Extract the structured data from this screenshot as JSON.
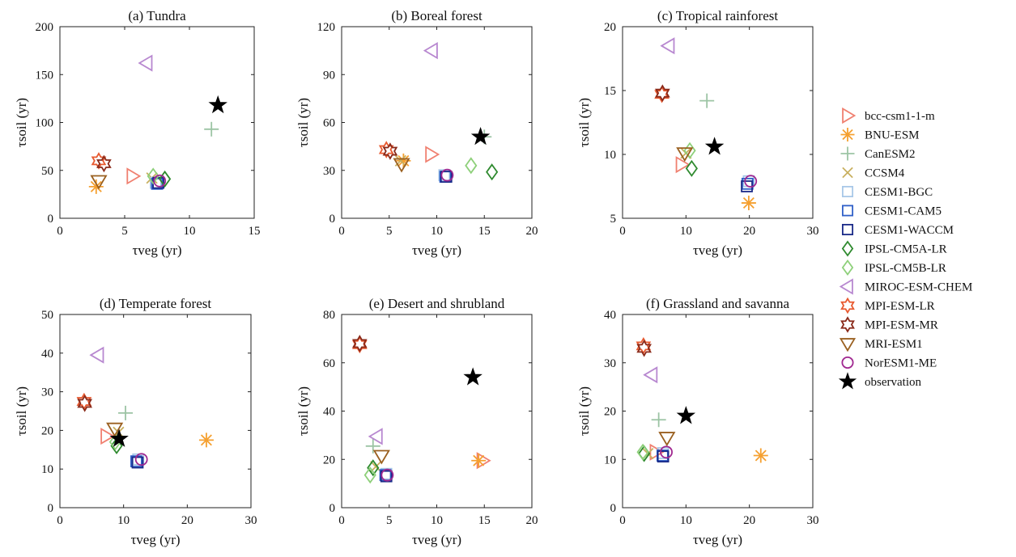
{
  "models": [
    {
      "name": "bcc-csm1-1-m",
      "marker": "triangle-right",
      "color": "#f08070"
    },
    {
      "name": "BNU-ESM",
      "marker": "asterisk",
      "color": "#f5a030"
    },
    {
      "name": "CanESM2",
      "marker": "plus",
      "color": "#9cc4a4"
    },
    {
      "name": "CCSM4",
      "marker": "x",
      "color": "#c8b060"
    },
    {
      "name": "CESM1-BGC",
      "marker": "square",
      "color": "#a8c8e8"
    },
    {
      "name": "CESM1-CAM5",
      "marker": "square",
      "color": "#3060c8"
    },
    {
      "name": "CESM1-WACCM",
      "marker": "square",
      "color": "#1a2a88"
    },
    {
      "name": "IPSL-CM5A-LR",
      "marker": "diamond",
      "color": "#2e8a2e"
    },
    {
      "name": "IPSL-CM5B-LR",
      "marker": "diamond",
      "color": "#8ed07a"
    },
    {
      "name": "MIROC-ESM-CHEM",
      "marker": "triangle-left",
      "color": "#b888d0"
    },
    {
      "name": "MPI-ESM-LR",
      "marker": "hexagram",
      "color": "#e85a30"
    },
    {
      "name": "MPI-ESM-MR",
      "marker": "hexagram",
      "color": "#8a2a1a"
    },
    {
      "name": "MRI-ESM1",
      "marker": "triangle-down",
      "color": "#9a6020"
    },
    {
      "name": "NorESM1-ME",
      "marker": "circle",
      "color": "#a02890"
    },
    {
      "name": "observation",
      "marker": "star",
      "color": "#000000"
    }
  ],
  "chart_data": [
    {
      "type": "scatter",
      "title": "(a) Tundra",
      "xlabel": "τveg (yr)",
      "ylabel": "τsoil (yr)",
      "xlim": [
        0,
        15
      ],
      "ylim": [
        0,
        200
      ],
      "xticks": [
        0,
        5,
        10,
        15
      ],
      "yticks": [
        0,
        50,
        100,
        150,
        200
      ],
      "series": [
        {
          "name": "bcc-csm1-1-m",
          "x": [
            5.6
          ],
          "y": [
            44
          ]
        },
        {
          "name": "BNU-ESM",
          "x": [
            2.8
          ],
          "y": [
            33
          ]
        },
        {
          "name": "CanESM2",
          "x": [
            11.7
          ],
          "y": [
            93
          ]
        },
        {
          "name": "CCSM4",
          "x": [
            7.1
          ],
          "y": [
            42
          ]
        },
        {
          "name": "CESM1-BGC",
          "x": [
            7.4
          ],
          "y": [
            37
          ]
        },
        {
          "name": "CESM1-CAM5",
          "x": [
            7.5
          ],
          "y": [
            36
          ]
        },
        {
          "name": "CESM1-WACCM",
          "x": [
            7.6
          ],
          "y": [
            37
          ]
        },
        {
          "name": "IPSL-CM5A-LR",
          "x": [
            8.1
          ],
          "y": [
            41
          ]
        },
        {
          "name": "IPSL-CM5B-LR",
          "x": [
            7.2
          ],
          "y": [
            44
          ]
        },
        {
          "name": "MIROC-ESM-CHEM",
          "x": [
            6.7
          ],
          "y": [
            162
          ]
        },
        {
          "name": "MPI-ESM-LR",
          "x": [
            3.0
          ],
          "y": [
            60
          ]
        },
        {
          "name": "MPI-ESM-MR",
          "x": [
            3.4
          ],
          "y": [
            57
          ]
        },
        {
          "name": "MRI-ESM1",
          "x": [
            3.0
          ],
          "y": [
            39
          ]
        },
        {
          "name": "NorESM1-ME",
          "x": [
            7.7
          ],
          "y": [
            39
          ]
        },
        {
          "name": "observation",
          "x": [
            12.2
          ],
          "y": [
            118
          ]
        }
      ]
    },
    {
      "type": "scatter",
      "title": "(b) Boreal forest",
      "xlabel": "τveg (yr)",
      "ylabel": "τsoil (yr)",
      "xlim": [
        0,
        20
      ],
      "ylim": [
        0,
        120
      ],
      "xticks": [
        0,
        5,
        10,
        15,
        20
      ],
      "yticks": [
        0,
        30,
        60,
        90,
        120
      ],
      "series": [
        {
          "name": "bcc-csm1-1-m",
          "x": [
            9.4
          ],
          "y": [
            40
          ]
        },
        {
          "name": "BNU-ESM",
          "x": [
            6.5
          ],
          "y": [
            36
          ]
        },
        {
          "name": "CanESM2",
          "x": [
            15.0
          ],
          "y": [
            51
          ]
        },
        {
          "name": "CCSM4",
          "x": [
            6.2
          ],
          "y": [
            36
          ]
        },
        {
          "name": "CESM1-BGC",
          "x": [
            10.8
          ],
          "y": [
            27
          ]
        },
        {
          "name": "CESM1-CAM5",
          "x": [
            10.9
          ],
          "y": [
            26
          ]
        },
        {
          "name": "CESM1-WACCM",
          "x": [
            11.0
          ],
          "y": [
            26
          ]
        },
        {
          "name": "IPSL-CM5A-LR",
          "x": [
            15.8
          ],
          "y": [
            29
          ]
        },
        {
          "name": "IPSL-CM5B-LR",
          "x": [
            13.6
          ],
          "y": [
            33
          ]
        },
        {
          "name": "MIROC-ESM-CHEM",
          "x": [
            9.5
          ],
          "y": [
            105
          ]
        },
        {
          "name": "MPI-ESM-LR",
          "x": [
            4.7
          ],
          "y": [
            43
          ]
        },
        {
          "name": "MPI-ESM-MR",
          "x": [
            5.1
          ],
          "y": [
            42
          ]
        },
        {
          "name": "MRI-ESM1",
          "x": [
            6.3
          ],
          "y": [
            34
          ]
        },
        {
          "name": "NorESM1-ME",
          "x": [
            11.1
          ],
          "y": [
            27
          ]
        },
        {
          "name": "observation",
          "x": [
            14.6
          ],
          "y": [
            51
          ]
        }
      ]
    },
    {
      "type": "scatter",
      "title": "(c) Tropical rainforest",
      "xlabel": "τveg (yr)",
      "ylabel": "τsoil (yr)",
      "xlim": [
        0,
        30
      ],
      "ylim": [
        5,
        20
      ],
      "xticks": [
        0,
        10,
        20,
        30
      ],
      "yticks": [
        5,
        10,
        15,
        20
      ],
      "series": [
        {
          "name": "bcc-csm1-1-m",
          "x": [
            9.3
          ],
          "y": [
            9.2
          ]
        },
        {
          "name": "BNU-ESM",
          "x": [
            19.9
          ],
          "y": [
            6.2
          ]
        },
        {
          "name": "CanESM2",
          "x": [
            13.3
          ],
          "y": [
            14.2
          ]
        },
        {
          "name": "CCSM4",
          "x": [
            10.0
          ],
          "y": [
            10.1
          ]
        },
        {
          "name": "CESM1-BGC",
          "x": [
            19.9
          ],
          "y": [
            7.9
          ]
        },
        {
          "name": "CESM1-CAM5",
          "x": [
            19.7
          ],
          "y": [
            7.7
          ]
        },
        {
          "name": "CESM1-WACCM",
          "x": [
            19.6
          ],
          "y": [
            7.5
          ]
        },
        {
          "name": "IPSL-CM5A-LR",
          "x": [
            10.9
          ],
          "y": [
            8.9
          ]
        },
        {
          "name": "IPSL-CM5B-LR",
          "x": [
            10.6
          ],
          "y": [
            10.3
          ]
        },
        {
          "name": "MIROC-ESM-CHEM",
          "x": [
            7.3
          ],
          "y": [
            18.5
          ]
        },
        {
          "name": "MPI-ESM-LR",
          "x": [
            6.2
          ],
          "y": [
            14.7
          ]
        },
        {
          "name": "MPI-ESM-MR",
          "x": [
            6.3
          ],
          "y": [
            14.8
          ]
        },
        {
          "name": "MRI-ESM1",
          "x": [
            9.8
          ],
          "y": [
            10.1
          ]
        },
        {
          "name": "NorESM1-ME",
          "x": [
            20.2
          ],
          "y": [
            7.9
          ]
        },
        {
          "name": "observation",
          "x": [
            14.5
          ],
          "y": [
            10.6
          ]
        }
      ]
    },
    {
      "type": "scatter",
      "title": "(d) Temperate forest",
      "xlabel": "τveg (yr)",
      "ylabel": "τsoil (yr)",
      "xlim": [
        0,
        30
      ],
      "ylim": [
        0,
        50
      ],
      "xticks": [
        0,
        10,
        20,
        30
      ],
      "yticks": [
        0,
        10,
        20,
        30,
        40,
        50
      ],
      "series": [
        {
          "name": "bcc-csm1-1-m",
          "x": [
            7.3
          ],
          "y": [
            18.5
          ]
        },
        {
          "name": "BNU-ESM",
          "x": [
            23.0
          ],
          "y": [
            17.5
          ]
        },
        {
          "name": "CanESM2",
          "x": [
            10.3
          ],
          "y": [
            24.5
          ]
        },
        {
          "name": "CCSM4",
          "x": [
            9.2
          ],
          "y": [
            19.5
          ]
        },
        {
          "name": "CESM1-BGC",
          "x": [
            12.3
          ],
          "y": [
            12.5
          ]
        },
        {
          "name": "CESM1-CAM5",
          "x": [
            12.0
          ],
          "y": [
            12.0
          ]
        },
        {
          "name": "CESM1-WACCM",
          "x": [
            12.2
          ],
          "y": [
            11.7
          ]
        },
        {
          "name": "IPSL-CM5A-LR",
          "x": [
            8.9
          ],
          "y": [
            16.0
          ]
        },
        {
          "name": "IPSL-CM5B-LR",
          "x": [
            8.7
          ],
          "y": [
            17.0
          ]
        },
        {
          "name": "MIROC-ESM-CHEM",
          "x": [
            6.0
          ],
          "y": [
            39.5
          ]
        },
        {
          "name": "MPI-ESM-LR",
          "x": [
            3.8
          ],
          "y": [
            27.5
          ]
        },
        {
          "name": "MPI-ESM-MR",
          "x": [
            3.9
          ],
          "y": [
            27.0
          ]
        },
        {
          "name": "MRI-ESM1",
          "x": [
            8.6
          ],
          "y": [
            20.5
          ]
        },
        {
          "name": "NorESM1-ME",
          "x": [
            12.8
          ],
          "y": [
            12.5
          ]
        },
        {
          "name": "observation",
          "x": [
            9.3
          ],
          "y": [
            17.8
          ]
        }
      ]
    },
    {
      "type": "scatter",
      "title": "(e) Desert and shrubland",
      "xlabel": "τveg (yr)",
      "ylabel": "τsoil (yr)",
      "xlim": [
        0,
        20
      ],
      "ylim": [
        0,
        80
      ],
      "xticks": [
        0,
        5,
        10,
        15,
        20
      ],
      "yticks": [
        0,
        20,
        40,
        60,
        80
      ],
      "series": [
        {
          "name": "bcc-csm1-1-m",
          "x": [
            14.8
          ],
          "y": [
            19.5
          ]
        },
        {
          "name": "BNU-ESM",
          "x": [
            14.4
          ],
          "y": [
            19.5
          ]
        },
        {
          "name": "CanESM2",
          "x": [
            3.3
          ],
          "y": [
            25.5
          ]
        },
        {
          "name": "CCSM4",
          "x": [
            3.6
          ],
          "y": [
            17.0
          ]
        },
        {
          "name": "CESM1-BGC",
          "x": [
            4.7
          ],
          "y": [
            14.0
          ]
        },
        {
          "name": "CESM1-CAM5",
          "x": [
            4.6
          ],
          "y": [
            13.5
          ]
        },
        {
          "name": "CESM1-WACCM",
          "x": [
            4.7
          ],
          "y": [
            13.0
          ]
        },
        {
          "name": "IPSL-CM5A-LR",
          "x": [
            3.3
          ],
          "y": [
            16.5
          ]
        },
        {
          "name": "IPSL-CM5B-LR",
          "x": [
            3.0
          ],
          "y": [
            13.5
          ]
        },
        {
          "name": "MIROC-ESM-CHEM",
          "x": [
            3.7
          ],
          "y": [
            29.5
          ]
        },
        {
          "name": "MPI-ESM-LR",
          "x": [
            1.9
          ],
          "y": [
            67.5
          ]
        },
        {
          "name": "MPI-ESM-MR",
          "x": [
            1.9
          ],
          "y": [
            68.0
          ]
        },
        {
          "name": "MRI-ESM1",
          "x": [
            4.2
          ],
          "y": [
            21.5
          ]
        },
        {
          "name": "NorESM1-ME",
          "x": [
            4.8
          ],
          "y": [
            13.5
          ]
        },
        {
          "name": "observation",
          "x": [
            13.8
          ],
          "y": [
            54.0
          ]
        }
      ]
    },
    {
      "type": "scatter",
      "title": "(f) Grassland and savanna",
      "xlabel": "τveg (yr)",
      "ylabel": "τsoil (yr)",
      "xlim": [
        0,
        30
      ],
      "ylim": [
        0,
        40
      ],
      "xticks": [
        0,
        10,
        20,
        30
      ],
      "yticks": [
        0,
        10,
        20,
        30,
        40
      ],
      "series": [
        {
          "name": "bcc-csm1-1-m",
          "x": [
            5.2
          ],
          "y": [
            11.5
          ]
        },
        {
          "name": "BNU-ESM",
          "x": [
            21.8
          ],
          "y": [
            10.8
          ]
        },
        {
          "name": "CanESM2",
          "x": [
            5.7
          ],
          "y": [
            18.2
          ]
        },
        {
          "name": "CCSM4",
          "x": [
            4.0
          ],
          "y": [
            11.2
          ]
        },
        {
          "name": "CESM1-BGC",
          "x": [
            6.4
          ],
          "y": [
            11.3
          ]
        },
        {
          "name": "CESM1-CAM5",
          "x": [
            6.3
          ],
          "y": [
            10.8
          ]
        },
        {
          "name": "CESM1-WACCM",
          "x": [
            6.4
          ],
          "y": [
            10.6
          ]
        },
        {
          "name": "IPSL-CM5A-LR",
          "x": [
            3.4
          ],
          "y": [
            11.2
          ]
        },
        {
          "name": "IPSL-CM5B-LR",
          "x": [
            3.2
          ],
          "y": [
            11.5
          ]
        },
        {
          "name": "MIROC-ESM-CHEM",
          "x": [
            4.6
          ],
          "y": [
            27.5
          ]
        },
        {
          "name": "MPI-ESM-LR",
          "x": [
            3.3
          ],
          "y": [
            33.5
          ]
        },
        {
          "name": "MPI-ESM-MR",
          "x": [
            3.4
          ],
          "y": [
            33.0
          ]
        },
        {
          "name": "MRI-ESM1",
          "x": [
            7.0
          ],
          "y": [
            14.5
          ]
        },
        {
          "name": "NorESM1-ME",
          "x": [
            6.9
          ],
          "y": [
            11.5
          ]
        },
        {
          "name": "observation",
          "x": [
            10.0
          ],
          "y": [
            19.0
          ]
        }
      ]
    }
  ]
}
